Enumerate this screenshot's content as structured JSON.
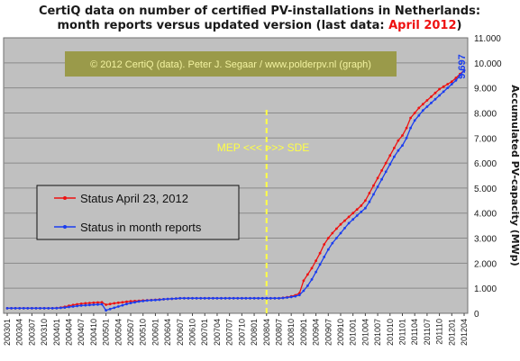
{
  "title": {
    "line1": "CertiQ data on number of certified PV-installations in Netherlands:",
    "line2_prefix": "month reports versus updated version (last data: ",
    "line2_accent": "April 2012",
    "line2_suffix": ")"
  },
  "credit_text": "© 2012 CertiQ (data). Peter J. Segaar / www.polderpv.nl (graph)",
  "annotation_text": "MEP <<<  >>> SDE",
  "end_value_label": "9.697",
  "colors": {
    "plot_bg": "#c0c0c0",
    "red_series": "#ee1111",
    "blue_series": "#1a3df0",
    "divider": "#ffff44",
    "credit_box": "#9a9a4a",
    "legend_bg": "#c0c0c0"
  },
  "chart_data": {
    "type": "line",
    "title": "CertiQ data on number of certified PV-installations in Netherlands: month reports versus updated version (last data: April 2012)",
    "ylabel": "Accumulated PV-capacity (MWp)",
    "ylim": [
      0,
      11000
    ],
    "yticks": [
      "0",
      "1.000",
      "2.000",
      "3.000",
      "4.000",
      "5.000",
      "6.000",
      "7.000",
      "8.000",
      "9.000",
      "10.000",
      "11.000"
    ],
    "ytick_values": [
      0,
      1000,
      2000,
      3000,
      4000,
      5000,
      6000,
      7000,
      8000,
      9000,
      10000,
      11000
    ],
    "y_axis_side": "right",
    "grid": true,
    "legend_position": "left-middle",
    "x": [
      "200301",
      "200302",
      "200303",
      "200304",
      "200305",
      "200306",
      "200307",
      "200308",
      "200309",
      "200310",
      "200311",
      "200312",
      "200401",
      "200402",
      "200403",
      "200404",
      "200405",
      "200406",
      "200407",
      "200408",
      "200409",
      "200410",
      "200411",
      "200412",
      "200501",
      "200502",
      "200503",
      "200504",
      "200505",
      "200506",
      "200507",
      "200508",
      "200509",
      "200510",
      "200511",
      "200512",
      "200601",
      "200602",
      "200603",
      "200604",
      "200605",
      "200606",
      "200607",
      "200608",
      "200609",
      "200610",
      "200611",
      "200612",
      "200701",
      "200702",
      "200703",
      "200704",
      "200705",
      "200706",
      "200707",
      "200708",
      "200709",
      "200710",
      "200711",
      "200712",
      "200801",
      "200802",
      "200803",
      "200804",
      "200805",
      "200806",
      "200807",
      "200808",
      "200809",
      "200810",
      "200811",
      "200812",
      "200901",
      "200902",
      "200903",
      "200904",
      "200905",
      "200906",
      "200907",
      "200908",
      "200909",
      "200910",
      "200911",
      "200912",
      "201001",
      "201002",
      "201003",
      "201004",
      "201005",
      "201006",
      "201007",
      "201008",
      "201009",
      "201010",
      "201011",
      "201012",
      "201101",
      "201102",
      "201103",
      "201104",
      "201105",
      "201106",
      "201107",
      "201108",
      "201109",
      "201110",
      "201111",
      "201112",
      "201201",
      "201202",
      "201203",
      "201204"
    ],
    "xtick_labels": [
      "200301",
      "200304",
      "200307",
      "200310",
      "200401",
      "200404",
      "200407",
      "200410",
      "200501",
      "200504",
      "200507",
      "200510",
      "200601",
      "200604",
      "200607",
      "200610",
      "200701",
      "200704",
      "200707",
      "200710",
      "200801",
      "200804",
      "200807",
      "200810",
      "200901",
      "200904",
      "200907",
      "200910",
      "201001",
      "201004",
      "201007",
      "201010",
      "201101",
      "201104",
      "201107",
      "201110",
      "201201",
      "201204"
    ],
    "series": [
      {
        "name": "Status April 23, 2012",
        "values": [
          200,
          200,
          200,
          200,
          200,
          200,
          200,
          200,
          200,
          200,
          200,
          200,
          210,
          230,
          260,
          300,
          330,
          360,
          380,
          400,
          410,
          420,
          430,
          440,
          340,
          370,
          400,
          420,
          440,
          460,
          480,
          490,
          500,
          510,
          520,
          530,
          540,
          550,
          560,
          570,
          580,
          590,
          600,
          600,
          600,
          600,
          600,
          600,
          600,
          600,
          600,
          600,
          600,
          600,
          600,
          600,
          600,
          600,
          600,
          600,
          600,
          600,
          600,
          600,
          600,
          600,
          600,
          620,
          640,
          680,
          720,
          800,
          1300,
          1550,
          1800,
          2100,
          2400,
          2750,
          3000,
          3200,
          3380,
          3550,
          3700,
          3850,
          4000,
          4150,
          4300,
          4500,
          4800,
          5100,
          5400,
          5700,
          6000,
          6300,
          6600,
          6900,
          7100,
          7400,
          7800,
          8000,
          8200,
          8350,
          8500,
          8650,
          8800,
          8950,
          9050,
          9150,
          9250,
          9400,
          9550,
          9697
        ]
      },
      {
        "name": "Status in month reports",
        "values": [
          200,
          200,
          200,
          200,
          200,
          200,
          200,
          200,
          200,
          200,
          200,
          200,
          205,
          215,
          230,
          250,
          270,
          290,
          310,
          320,
          330,
          340,
          350,
          360,
          120,
          170,
          220,
          270,
          320,
          370,
          410,
          440,
          470,
          490,
          510,
          520,
          530,
          540,
          560,
          570,
          580,
          590,
          600,
          600,
          600,
          600,
          600,
          600,
          600,
          600,
          600,
          600,
          600,
          600,
          600,
          600,
          600,
          600,
          600,
          600,
          600,
          600,
          600,
          600,
          600,
          600,
          600,
          610,
          630,
          650,
          680,
          730,
          900,
          1100,
          1350,
          1650,
          1950,
          2250,
          2550,
          2800,
          3000,
          3200,
          3400,
          3600,
          3750,
          3900,
          4050,
          4200,
          4450,
          4750,
          5050,
          5350,
          5650,
          5950,
          6250,
          6500,
          6700,
          7000,
          7400,
          7700,
          7900,
          8100,
          8250,
          8400,
          8550,
          8700,
          8850,
          9000,
          9150,
          9300,
          9500,
          9697
        ]
      }
    ],
    "annotations": [
      "MEP <<<  >>> SDE",
      "9.697"
    ],
    "divider_at": "200804"
  }
}
